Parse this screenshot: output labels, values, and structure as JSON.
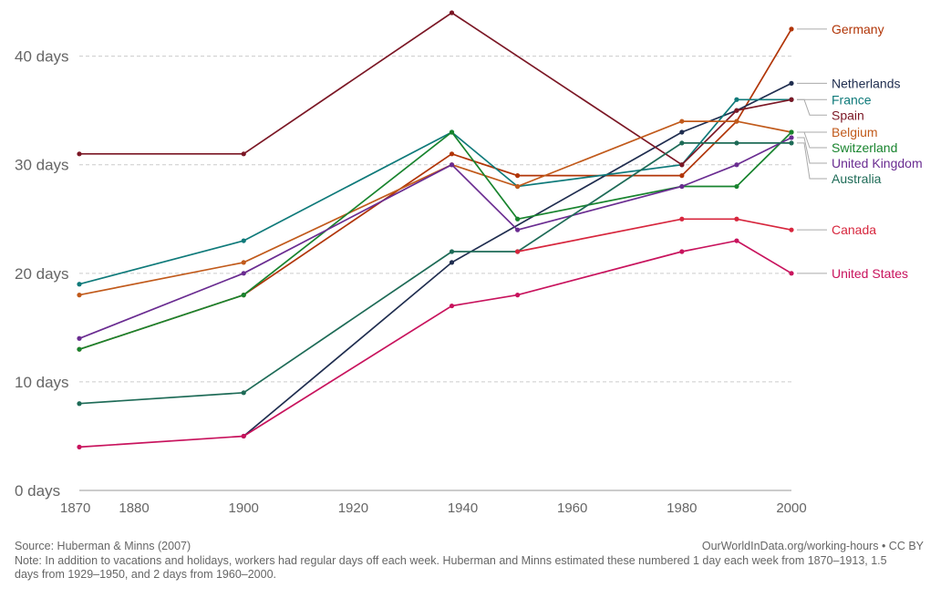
{
  "chart_data": {
    "type": "line",
    "x_ticks": [
      1870,
      1880,
      1900,
      1920,
      1940,
      1960,
      1980,
      2000
    ],
    "y_ticks": [
      0,
      10,
      20,
      30,
      40
    ],
    "y_tick_labels": [
      "0 days",
      "10 days",
      "20 days",
      "30 days",
      "40 days"
    ],
    "xlim": [
      1870,
      2000
    ],
    "ylim": [
      0,
      44
    ],
    "grid": "horizontal dashed",
    "legend_placement": "right, labels at line ends",
    "series": [
      {
        "name": "Germany",
        "color": "#b13507",
        "x": [
          1870,
          1900,
          1938,
          1950,
          1980,
          1990,
          2000
        ],
        "y": [
          13,
          18,
          31,
          29,
          29,
          34,
          42.5
        ]
      },
      {
        "name": "Netherlands",
        "color": "#1f2d4f",
        "x": [
          1900,
          1938,
          1980,
          1990,
          2000
        ],
        "y": [
          5,
          21,
          33,
          35,
          37.5
        ]
      },
      {
        "name": "France",
        "color": "#0f7a7a",
        "x": [
          1870,
          1900,
          1938,
          1950,
          1980,
          1990,
          2000
        ],
        "y": [
          19,
          23,
          33,
          28,
          30,
          36,
          36
        ]
      },
      {
        "name": "Spain",
        "color": "#7b1725",
        "x": [
          1870,
          1900,
          1938,
          1980,
          1990,
          2000
        ],
        "y": [
          31,
          31,
          44,
          30,
          35,
          36
        ]
      },
      {
        "name": "Belgium",
        "color": "#c15a1b",
        "x": [
          1870,
          1900,
          1938,
          1950,
          1980,
          1990,
          2000
        ],
        "y": [
          18,
          21,
          30,
          28,
          34,
          34,
          33
        ]
      },
      {
        "name": "Switzerland",
        "color": "#18842e",
        "x": [
          1870,
          1900,
          1938,
          1950,
          1980,
          1990,
          2000
        ],
        "y": [
          13,
          18,
          33,
          25,
          28,
          28,
          33
        ]
      },
      {
        "name": "United Kingdom",
        "color": "#6a2c91",
        "x": [
          1870,
          1900,
          1938,
          1950,
          1980,
          1990,
          2000
        ],
        "y": [
          14,
          20,
          30,
          24,
          28,
          30,
          32.5
        ]
      },
      {
        "name": "Australia",
        "color": "#1e6b57",
        "x": [
          1870,
          1900,
          1938,
          1950,
          1980,
          1990,
          2000
        ],
        "y": [
          8,
          9,
          22,
          22,
          32,
          32,
          32
        ]
      },
      {
        "name": "Canada",
        "color": "#d7263d",
        "x": [
          1950,
          1980,
          1990,
          2000
        ],
        "y": [
          22,
          25,
          25,
          24
        ]
      },
      {
        "name": "United States",
        "color": "#c8135d",
        "x": [
          1870,
          1900,
          1938,
          1950,
          1980,
          1990,
          2000
        ],
        "y": [
          4,
          5,
          17,
          18,
          22,
          23,
          20
        ]
      }
    ]
  },
  "footer": {
    "source": "Source: Huberman & Minns (2007)",
    "attribution": "OurWorldInData.org/working-hours • CC BY",
    "note": "Note: In addition to vacations and holidays, workers had regular days off each week. Huberman and Minns estimated these numbered 1 day each week from 1870–1913, 1.5 days from 1929–1950, and 2 days from 1960–2000."
  }
}
